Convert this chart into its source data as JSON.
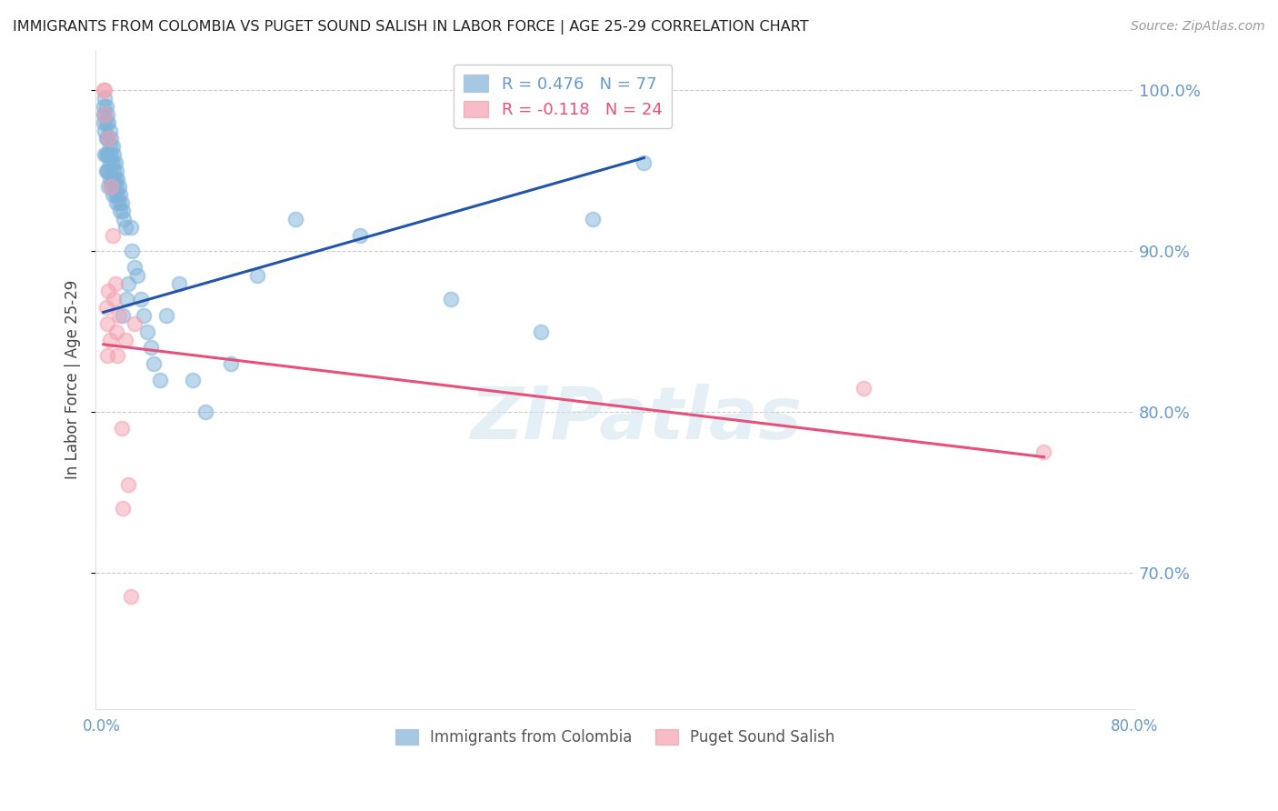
{
  "title": "IMMIGRANTS FROM COLOMBIA VS PUGET SOUND SALISH IN LABOR FORCE | AGE 25-29 CORRELATION CHART",
  "source": "Source: ZipAtlas.com",
  "xlabel": "",
  "ylabel": "In Labor Force | Age 25-29",
  "xlim": [
    -0.005,
    0.8
  ],
  "ylim": [
    0.615,
    1.025
  ],
  "yticks": [
    0.7,
    0.8,
    0.9,
    1.0
  ],
  "ytick_labels": [
    "70.0%",
    "80.0%",
    "90.0%",
    "100.0%"
  ],
  "xticks": [
    0.0,
    0.1,
    0.2,
    0.3,
    0.4,
    0.5,
    0.6,
    0.7,
    0.8
  ],
  "xtick_labels": [
    "0.0%",
    "",
    "",
    "",
    "",
    "",
    "",
    "",
    "80.0%"
  ],
  "blue_color": "#7FB3D9",
  "pink_color": "#F4A0B0",
  "line_blue": "#2255AA",
  "line_pink": "#E8507A",
  "R_blue": 0.476,
  "N_blue": 77,
  "R_pink": -0.118,
  "N_pink": 24,
  "watermark": "ZIPatlas",
  "legend_blue": "Immigrants from Colombia",
  "legend_pink": "Puget Sound Salish",
  "blue_scatter_x": [
    0.001,
    0.001,
    0.001,
    0.002,
    0.002,
    0.002,
    0.002,
    0.003,
    0.003,
    0.003,
    0.003,
    0.003,
    0.004,
    0.004,
    0.004,
    0.004,
    0.005,
    0.005,
    0.005,
    0.005,
    0.005,
    0.006,
    0.006,
    0.006,
    0.006,
    0.007,
    0.007,
    0.007,
    0.007,
    0.008,
    0.008,
    0.008,
    0.008,
    0.009,
    0.009,
    0.009,
    0.01,
    0.01,
    0.01,
    0.011,
    0.011,
    0.011,
    0.012,
    0.012,
    0.013,
    0.013,
    0.014,
    0.014,
    0.015,
    0.016,
    0.016,
    0.017,
    0.018,
    0.019,
    0.02,
    0.022,
    0.023,
    0.025,
    0.027,
    0.03,
    0.032,
    0.035,
    0.038,
    0.04,
    0.045,
    0.05,
    0.06,
    0.07,
    0.08,
    0.1,
    0.12,
    0.15,
    0.2,
    0.27,
    0.34,
    0.38,
    0.42
  ],
  "blue_scatter_y": [
    0.99,
    0.985,
    0.98,
    0.995,
    0.985,
    0.975,
    0.96,
    0.99,
    0.98,
    0.97,
    0.96,
    0.95,
    0.985,
    0.97,
    0.96,
    0.95,
    0.98,
    0.97,
    0.96,
    0.95,
    0.94,
    0.975,
    0.965,
    0.955,
    0.945,
    0.97,
    0.96,
    0.95,
    0.94,
    0.965,
    0.955,
    0.945,
    0.935,
    0.96,
    0.95,
    0.94,
    0.955,
    0.945,
    0.935,
    0.95,
    0.94,
    0.93,
    0.945,
    0.935,
    0.94,
    0.93,
    0.935,
    0.925,
    0.93,
    0.925,
    0.86,
    0.92,
    0.915,
    0.87,
    0.88,
    0.915,
    0.9,
    0.89,
    0.885,
    0.87,
    0.86,
    0.85,
    0.84,
    0.83,
    0.82,
    0.86,
    0.88,
    0.82,
    0.8,
    0.83,
    0.885,
    0.92,
    0.91,
    0.87,
    0.85,
    0.92,
    0.955
  ],
  "pink_scatter_x": [
    0.001,
    0.002,
    0.002,
    0.003,
    0.004,
    0.004,
    0.005,
    0.005,
    0.006,
    0.007,
    0.008,
    0.009,
    0.01,
    0.011,
    0.012,
    0.013,
    0.015,
    0.016,
    0.018,
    0.02,
    0.022,
    0.025,
    0.59,
    0.73
  ],
  "pink_scatter_y": [
    1.0,
    1.0,
    0.985,
    0.865,
    0.855,
    0.835,
    0.97,
    0.875,
    0.845,
    0.94,
    0.91,
    0.87,
    0.88,
    0.85,
    0.835,
    0.86,
    0.79,
    0.74,
    0.845,
    0.755,
    0.685,
    0.855,
    0.815,
    0.775
  ],
  "bg_color": "#FFFFFF",
  "axis_color": "#6699CC",
  "grid_color": "#CCCCCC",
  "blue_line_x": [
    0.001,
    0.42
  ],
  "blue_line_y": [
    0.862,
    0.958
  ],
  "pink_line_x": [
    0.001,
    0.73
  ],
  "pink_line_y": [
    0.842,
    0.772
  ]
}
